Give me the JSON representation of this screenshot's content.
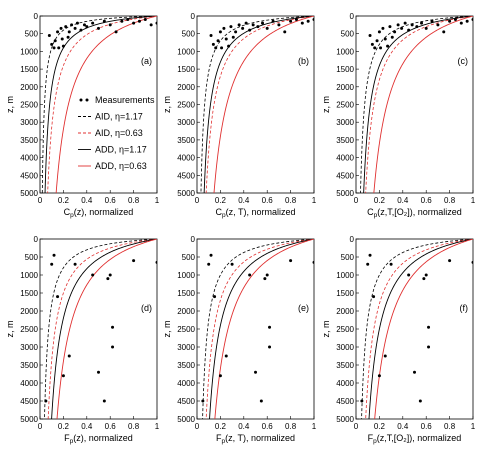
{
  "chart_data": {
    "type": "line",
    "x_ticks": [
      "0",
      "0.2",
      "0.4",
      "0.6",
      "0.8",
      "1"
    ],
    "x_range": [
      0,
      1
    ],
    "legend": {
      "placement": "lower-right of panel (a)",
      "entries": [
        {
          "label": "Measurements",
          "color": "#000000",
          "style": "marker"
        },
        {
          "label": "AID, η=1.17",
          "color": "#000000",
          "style": "dashed"
        },
        {
          "label": "AID, η=0.63",
          "color": "#e03030",
          "style": "dashed"
        },
        {
          "label": "ADD, η=1.17",
          "color": "#000000",
          "style": "solid"
        },
        {
          "label": "ADD, η=0.63",
          "color": "#e03030",
          "style": "solid"
        }
      ]
    },
    "panels": [
      {
        "tag": "(a)",
        "ylabel": "z, m",
        "xlabel": "C",
        "xlabel_sub": "p",
        "xlabel_rest": "(z), normalized",
        "y_ticks": [
          "0",
          "500",
          "1000",
          "1500",
          "2000",
          "2500",
          "3000",
          "3500",
          "4000",
          "4500",
          "5000"
        ],
        "y_range": [
          0,
          5000
        ],
        "points": [
          [
            0.08,
            550
          ],
          [
            0.1,
            800
          ],
          [
            0.12,
            900
          ],
          [
            0.13,
            700
          ],
          [
            0.15,
            450
          ],
          [
            0.16,
            900
          ],
          [
            0.18,
            350
          ],
          [
            0.19,
            650
          ],
          [
            0.2,
            850
          ],
          [
            0.22,
            300
          ],
          [
            0.24,
            600
          ],
          [
            0.25,
            450
          ],
          [
            0.27,
            250
          ],
          [
            0.3,
            350
          ],
          [
            0.32,
            200
          ],
          [
            0.35,
            400
          ],
          [
            0.38,
            250
          ],
          [
            0.4,
            300
          ],
          [
            0.45,
            200
          ],
          [
            0.5,
            350
          ],
          [
            0.55,
            150
          ],
          [
            0.6,
            250
          ],
          [
            0.65,
            450
          ],
          [
            0.7,
            150
          ],
          [
            0.75,
            100
          ],
          [
            0.8,
            200
          ],
          [
            0.85,
            150
          ],
          [
            0.9,
            100
          ],
          [
            0.95,
            250
          ],
          [
            1.0,
            200
          ]
        ],
        "curves": [
          {
            "name": "AID, η=1.17",
            "k": 0.02
          },
          {
            "name": "AID, η=0.63",
            "k": 0.07
          },
          {
            "name": "ADD, η=1.17",
            "k": 0.045
          },
          {
            "name": "ADD, η=0.63",
            "k": 0.16
          }
        ]
      },
      {
        "tag": "(b)",
        "ylabel": "z, m",
        "xlabel": "C",
        "xlabel_sub": "p",
        "xlabel_rest": "(z, T), normalized",
        "y_ticks": [
          "0",
          "500",
          "1000",
          "1500",
          "2000",
          "2500",
          "3000",
          "3500",
          "4000",
          "4500",
          "5000"
        ],
        "y_range": [
          0,
          5000
        ],
        "points": [
          [
            0.12,
            550
          ],
          [
            0.14,
            800
          ],
          [
            0.16,
            900
          ],
          [
            0.18,
            700
          ],
          [
            0.2,
            450
          ],
          [
            0.21,
            900
          ],
          [
            0.23,
            350
          ],
          [
            0.25,
            650
          ],
          [
            0.27,
            850
          ],
          [
            0.29,
            300
          ],
          [
            0.31,
            600
          ],
          [
            0.33,
            450
          ],
          [
            0.36,
            250
          ],
          [
            0.39,
            350
          ],
          [
            0.42,
            200
          ],
          [
            0.45,
            400
          ],
          [
            0.48,
            250
          ],
          [
            0.52,
            300
          ],
          [
            0.56,
            200
          ],
          [
            0.6,
            350
          ],
          [
            0.65,
            150
          ],
          [
            0.7,
            250
          ],
          [
            0.75,
            450
          ],
          [
            0.8,
            150
          ],
          [
            0.85,
            100
          ],
          [
            0.9,
            200
          ],
          [
            0.95,
            150
          ],
          [
            1.0,
            100
          ]
        ],
        "curves": [
          {
            "name": "AID, η=1.17",
            "k": 0.035
          },
          {
            "name": "AID, η=0.63",
            "k": 0.085
          },
          {
            "name": "ADD, η=1.17",
            "k": 0.065
          },
          {
            "name": "ADD, η=0.63",
            "k": 0.17
          }
        ]
      },
      {
        "tag": "(c)",
        "ylabel": "z, m",
        "xlabel": "C",
        "xlabel_sub": "p",
        "xlabel_rest": "(z,T,[O₂]), normalized",
        "y_ticks": [
          "0",
          "500",
          "1000",
          "1500",
          "2000",
          "2500",
          "3000",
          "3500",
          "4000",
          "4500",
          "5000"
        ],
        "y_range": [
          0,
          5000
        ],
        "points": [
          [
            0.12,
            550
          ],
          [
            0.14,
            800
          ],
          [
            0.16,
            900
          ],
          [
            0.18,
            700
          ],
          [
            0.2,
            450
          ],
          [
            0.21,
            900
          ],
          [
            0.23,
            350
          ],
          [
            0.25,
            650
          ],
          [
            0.27,
            850
          ],
          [
            0.29,
            300
          ],
          [
            0.31,
            600
          ],
          [
            0.33,
            450
          ],
          [
            0.36,
            250
          ],
          [
            0.39,
            350
          ],
          [
            0.42,
            200
          ],
          [
            0.45,
            400
          ],
          [
            0.48,
            250
          ],
          [
            0.52,
            300
          ],
          [
            0.56,
            200
          ],
          [
            0.6,
            350
          ],
          [
            0.65,
            150
          ],
          [
            0.7,
            250
          ],
          [
            0.75,
            450
          ],
          [
            0.8,
            150
          ],
          [
            0.85,
            100
          ],
          [
            0.9,
            200
          ],
          [
            0.95,
            150
          ],
          [
            1.0,
            100
          ]
        ],
        "curves": [
          {
            "name": "AID, η=1.17",
            "k": 0.04
          },
          {
            "name": "AID, η=0.63",
            "k": 0.09
          },
          {
            "name": "ADD, η=1.17",
            "k": 0.07
          },
          {
            "name": "ADD, η=0.63",
            "k": 0.18
          }
        ]
      },
      {
        "tag": "(d)",
        "ylabel": "z, m",
        "xlabel": "F",
        "xlabel_sub": "p",
        "xlabel_rest": "(z), normalized",
        "y_ticks": [
          "0",
          "500",
          "1000",
          "1500",
          "2000",
          "2500",
          "3000",
          "3500",
          "4000",
          "4500",
          "5000"
        ],
        "y_range": [
          0,
          5000
        ],
        "points": [
          [
            0.05,
            4500
          ],
          [
            0.1,
            700
          ],
          [
            0.12,
            450
          ],
          [
            0.15,
            1600
          ],
          [
            0.2,
            3800
          ],
          [
            0.25,
            3250
          ],
          [
            0.3,
            700
          ],
          [
            0.45,
            1000
          ],
          [
            0.5,
            3700
          ],
          [
            0.55,
            4500
          ],
          [
            0.58,
            1100
          ],
          [
            0.6,
            1000
          ],
          [
            0.62,
            2450
          ],
          [
            0.62,
            3000
          ],
          [
            0.8,
            600
          ],
          [
            1.0,
            650
          ]
        ],
        "curves": [
          {
            "name": "AID, η=1.17",
            "k": 0.04
          },
          {
            "name": "AID, η=0.63",
            "k": 0.075
          },
          {
            "name": "ADD, η=1.17",
            "k": 0.11
          },
          {
            "name": "ADD, η=0.63",
            "k": 0.17
          }
        ]
      },
      {
        "tag": "(e)",
        "ylabel": "z, m",
        "xlabel": "F",
        "xlabel_sub": "p",
        "xlabel_rest": "(z, T), normalized",
        "y_ticks": [
          "0",
          "500",
          "1000",
          "1500",
          "2000",
          "2500",
          "3000",
          "3500",
          "4000",
          "4500",
          "5000"
        ],
        "y_range": [
          0,
          5000
        ],
        "points": [
          [
            0.05,
            4500
          ],
          [
            0.1,
            700
          ],
          [
            0.12,
            450
          ],
          [
            0.15,
            1600
          ],
          [
            0.2,
            3800
          ],
          [
            0.25,
            3250
          ],
          [
            0.3,
            700
          ],
          [
            0.45,
            1000
          ],
          [
            0.5,
            3700
          ],
          [
            0.55,
            4500
          ],
          [
            0.58,
            1100
          ],
          [
            0.6,
            1000
          ],
          [
            0.62,
            2450
          ],
          [
            0.62,
            3000
          ],
          [
            0.8,
            600
          ],
          [
            1.0,
            650
          ]
        ],
        "curves": [
          {
            "name": "AID, η=1.17",
            "k": 0.05
          },
          {
            "name": "AID, η=0.63",
            "k": 0.085
          },
          {
            "name": "ADD, η=1.17",
            "k": 0.12
          },
          {
            "name": "ADD, η=0.63",
            "k": 0.18
          }
        ]
      },
      {
        "tag": "(f)",
        "ylabel": "z, m",
        "xlabel": "F",
        "xlabel_sub": "p",
        "xlabel_rest": "(z,T,[O₂]), normalized",
        "y_ticks": [
          "0",
          "500",
          "1000",
          "1500",
          "2000",
          "2500",
          "3000",
          "3500",
          "4000",
          "4500",
          "5000"
        ],
        "y_range": [
          0,
          5000
        ],
        "points": [
          [
            0.05,
            4500
          ],
          [
            0.1,
            700
          ],
          [
            0.12,
            450
          ],
          [
            0.15,
            1600
          ],
          [
            0.2,
            3800
          ],
          [
            0.25,
            3250
          ],
          [
            0.3,
            700
          ],
          [
            0.45,
            1000
          ],
          [
            0.5,
            3700
          ],
          [
            0.55,
            4500
          ],
          [
            0.58,
            1100
          ],
          [
            0.6,
            1000
          ],
          [
            0.62,
            2450
          ],
          [
            0.62,
            3000
          ],
          [
            0.8,
            600
          ],
          [
            1.0,
            650
          ]
        ],
        "curves": [
          {
            "name": "AID, η=1.17",
            "k": 0.05
          },
          {
            "name": "AID, η=0.63",
            "k": 0.09
          },
          {
            "name": "ADD, η=1.17",
            "k": 0.125
          },
          {
            "name": "ADD, η=0.63",
            "k": 0.19
          }
        ]
      }
    ]
  }
}
